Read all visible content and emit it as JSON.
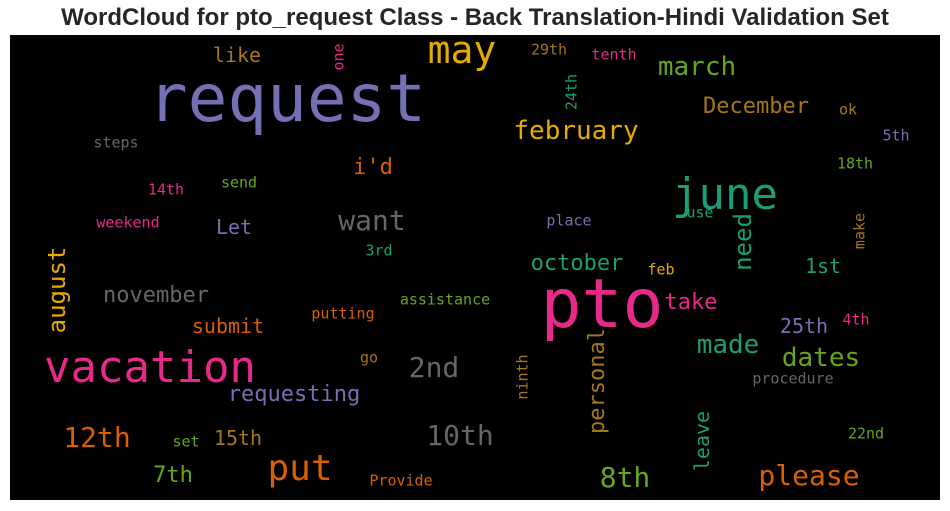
{
  "title": "WordCloud for pto_request Class - Back Translation-Hindi Validation Set",
  "palette": {
    "background": "#000000",
    "title_color": "#262626"
  },
  "words": [
    {
      "text": "request",
      "color": "#7570b3"
    },
    {
      "text": "pto",
      "color": "#e7298a"
    },
    {
      "text": "vacation",
      "color": "#e7298a"
    },
    {
      "text": "june",
      "color": "#1b9e77"
    },
    {
      "text": "may",
      "color": "#e6ab02"
    },
    {
      "text": "put",
      "color": "#d95f02"
    },
    {
      "text": "march",
      "color": "#66a61e"
    },
    {
      "text": "february",
      "color": "#e6ab02"
    },
    {
      "text": "December",
      "color": "#a6761d"
    },
    {
      "text": "want",
      "color": "#666666"
    },
    {
      "text": "august",
      "color": "#e6ab02"
    },
    {
      "text": "need",
      "color": "#1b9e77"
    },
    {
      "text": "october",
      "color": "#1b9e77"
    },
    {
      "text": "november",
      "color": "#666666"
    },
    {
      "text": "2nd",
      "color": "#666666"
    },
    {
      "text": "10th",
      "color": "#666666"
    },
    {
      "text": "12th",
      "color": "#d95f02"
    },
    {
      "text": "made",
      "color": "#1b9e77"
    },
    {
      "text": "dates",
      "color": "#66a61e"
    },
    {
      "text": "please",
      "color": "#d95f02"
    },
    {
      "text": "8th",
      "color": "#66a61e"
    },
    {
      "text": "personal",
      "color": "#a6761d"
    },
    {
      "text": "requesting",
      "color": "#7570b3"
    },
    {
      "text": "take",
      "color": "#e7298a"
    },
    {
      "text": "i'd",
      "color": "#d95f02"
    },
    {
      "text": "like",
      "color": "#a6761d"
    },
    {
      "text": "submit",
      "color": "#d95f02"
    },
    {
      "text": "Let",
      "color": "#7570b3"
    },
    {
      "text": "15th",
      "color": "#a6761d"
    },
    {
      "text": "7th",
      "color": "#66a61e"
    },
    {
      "text": "25th",
      "color": "#7570b3"
    },
    {
      "text": "1st",
      "color": "#1b9e77"
    },
    {
      "text": "leave",
      "color": "#1b9e77"
    },
    {
      "text": "ok",
      "color": "#a6761d"
    },
    {
      "text": "5th",
      "color": "#7570b3"
    },
    {
      "text": "18th",
      "color": "#66a61e"
    },
    {
      "text": "make",
      "color": "#a6761d"
    },
    {
      "text": "4th",
      "color": "#e7298a"
    },
    {
      "text": "procedure",
      "color": "#666666"
    },
    {
      "text": "22nd",
      "color": "#66a61e"
    },
    {
      "text": "steps",
      "color": "#666666"
    },
    {
      "text": "14th",
      "color": "#e7298a"
    },
    {
      "text": "send",
      "color": "#66a61e"
    },
    {
      "text": "weekend",
      "color": "#e7298a"
    },
    {
      "text": "3rd",
      "color": "#1b9e77"
    },
    {
      "text": "place",
      "color": "#7570b3"
    },
    {
      "text": "use",
      "color": "#1b9e77"
    },
    {
      "text": "feb",
      "color": "#e6ab02"
    },
    {
      "text": "assistance",
      "color": "#66a61e"
    },
    {
      "text": "putting",
      "color": "#d95f02"
    },
    {
      "text": "go",
      "color": "#a6761d"
    },
    {
      "text": "ninth",
      "color": "#a6761d"
    },
    {
      "text": "set",
      "color": "#66a61e"
    },
    {
      "text": "Provide",
      "color": "#d95f02"
    },
    {
      "text": "one",
      "color": "#e7298a"
    },
    {
      "text": "29th",
      "color": "#a6761d"
    },
    {
      "text": "tenth",
      "color": "#e7298a"
    },
    {
      "text": "24th",
      "color": "#1b9e77"
    }
  ]
}
